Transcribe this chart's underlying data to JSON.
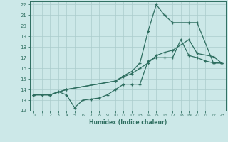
{
  "xlabel": "Humidex (Indice chaleur)",
  "background_color": "#cce8e8",
  "grid_color": "#aacccc",
  "line_color": "#2e6e60",
  "xlim": [
    -0.5,
    23.5
  ],
  "ylim": [
    12,
    22.3
  ],
  "xticks": [
    0,
    1,
    2,
    3,
    4,
    5,
    6,
    7,
    8,
    9,
    10,
    11,
    12,
    13,
    14,
    15,
    16,
    17,
    18,
    19,
    20,
    21,
    22,
    23
  ],
  "yticks": [
    12,
    13,
    14,
    15,
    16,
    17,
    18,
    19,
    20,
    21,
    22
  ],
  "line1_x": [
    0,
    1,
    2,
    3,
    4,
    5,
    6,
    7,
    8,
    9,
    10,
    11,
    12,
    13,
    14,
    15,
    16,
    17,
    18,
    19,
    20,
    21,
    22,
    23
  ],
  "line1_y": [
    13.5,
    13.5,
    13.5,
    13.8,
    13.5,
    12.3,
    13.0,
    13.1,
    13.2,
    13.5,
    14.0,
    14.5,
    14.5,
    14.5,
    16.7,
    17.0,
    17.0,
    17.0,
    18.7,
    17.2,
    17.0,
    16.7,
    16.5,
    16.5
  ],
  "line2_x": [
    0,
    2,
    4,
    10,
    11,
    12,
    13,
    14,
    15,
    16,
    17,
    19,
    20,
    22,
    23
  ],
  "line2_y": [
    13.5,
    13.5,
    14.0,
    14.8,
    15.3,
    15.7,
    16.5,
    19.5,
    22.0,
    21.0,
    20.3,
    20.3,
    20.3,
    16.5,
    16.5
  ],
  "line3_x": [
    0,
    2,
    4,
    10,
    11,
    12,
    13,
    14,
    15,
    16,
    17,
    19,
    20,
    22,
    23
  ],
  "line3_y": [
    13.5,
    13.5,
    14.0,
    14.8,
    15.2,
    15.5,
    16.0,
    16.5,
    17.2,
    17.5,
    17.7,
    18.7,
    17.4,
    17.1,
    16.5
  ]
}
